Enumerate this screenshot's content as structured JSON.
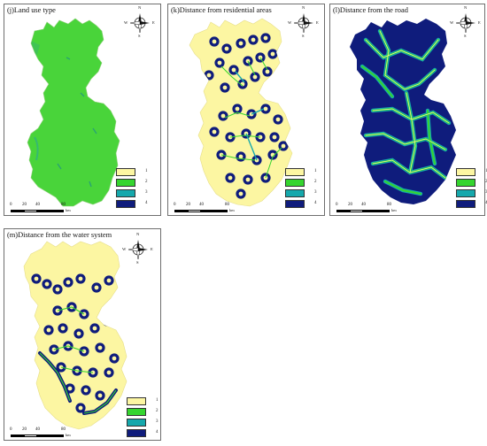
{
  "colors": {
    "class1": "#fcf6a2",
    "class2": "#35d52f",
    "class3": "#15a8ac",
    "class4": "#0f1c7c",
    "landuse": "#49d43a"
  },
  "compass": {
    "n": "N",
    "s": "S",
    "e": "E",
    "w": "W"
  },
  "scale": {
    "ticks": [
      "0",
      "20",
      "40",
      "80"
    ],
    "unit": "km"
  },
  "legend": {
    "labels": [
      "1",
      "2",
      "3",
      "4"
    ]
  },
  "panels": [
    {
      "id": "j",
      "title": "(j)Land use type"
    },
    {
      "id": "k",
      "title": "(k)Distance from residential areas"
    },
    {
      "id": "l",
      "title": "(l)Distance from the road"
    },
    {
      "id": "m",
      "title": "(m)Distance from the water system"
    }
  ]
}
